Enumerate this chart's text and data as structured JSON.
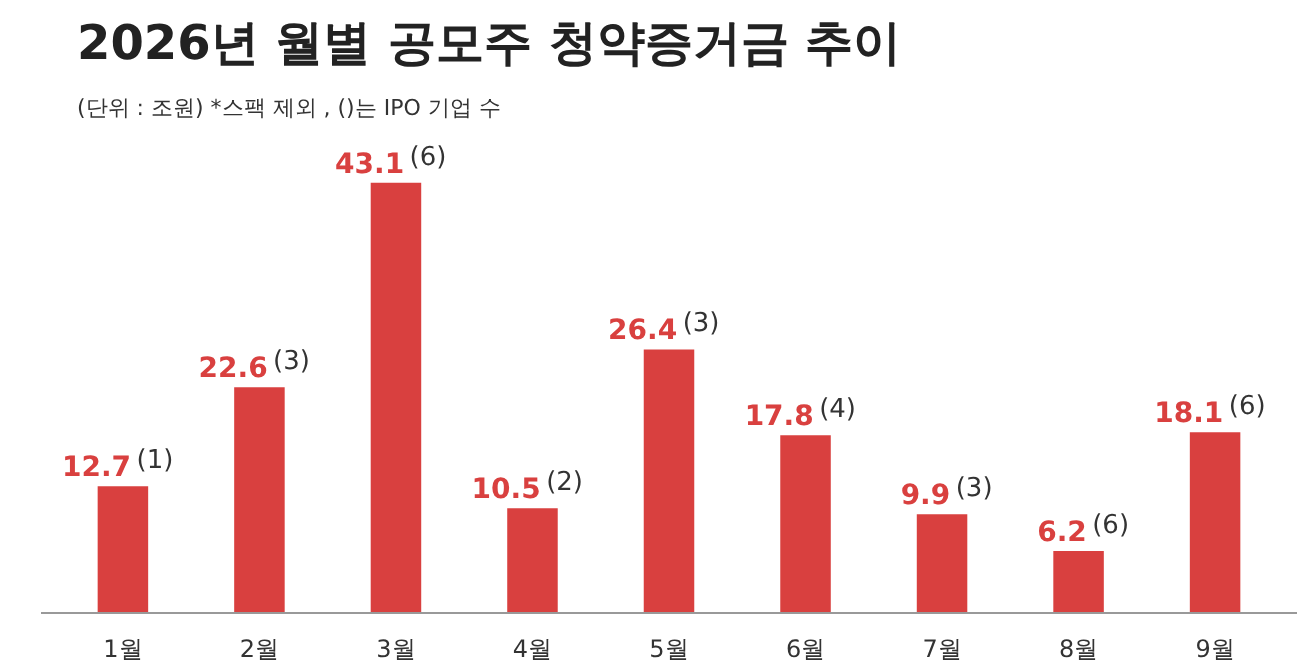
{
  "chart_data": {
    "type": "bar",
    "title": "2026년 월별 공모주 청약증거금 추이",
    "subtitle": "(단위 : 조원)  *스팩 제외 , ()는 IPO 기업 수",
    "categories": [
      "1월",
      "2월",
      "3월",
      "4월",
      "5월",
      "6월",
      "7월",
      "8월",
      "9월"
    ],
    "values": [
      12.7,
      22.6,
      43.1,
      10.5,
      26.4,
      17.8,
      9.9,
      6.2,
      18.1
    ],
    "color": "#d9403f",
    "data_labels": true,
    "grid": false,
    "annotations": [
      {
        "text": "(1)",
        "x": "1월",
        "y": 12.7
      },
      {
        "text": "(3)",
        "x": "2월",
        "y": 22.6
      },
      {
        "text": "(6)",
        "x": "3월",
        "y": 43.1
      },
      {
        "text": "(2)",
        "x": "4월",
        "y": 10.5
      },
      {
        "text": "(3)",
        "x": "5월",
        "y": 26.4
      },
      {
        "text": "(4)",
        "x": "6월",
        "y": 17.8
      },
      {
        "text": "(3)",
        "x": "7월",
        "y": 9.9
      },
      {
        "text": "(6)",
        "x": "8월",
        "y": 6.2
      },
      {
        "text": "(6)",
        "x": "9월",
        "y": 18.1
      }
    ]
  }
}
